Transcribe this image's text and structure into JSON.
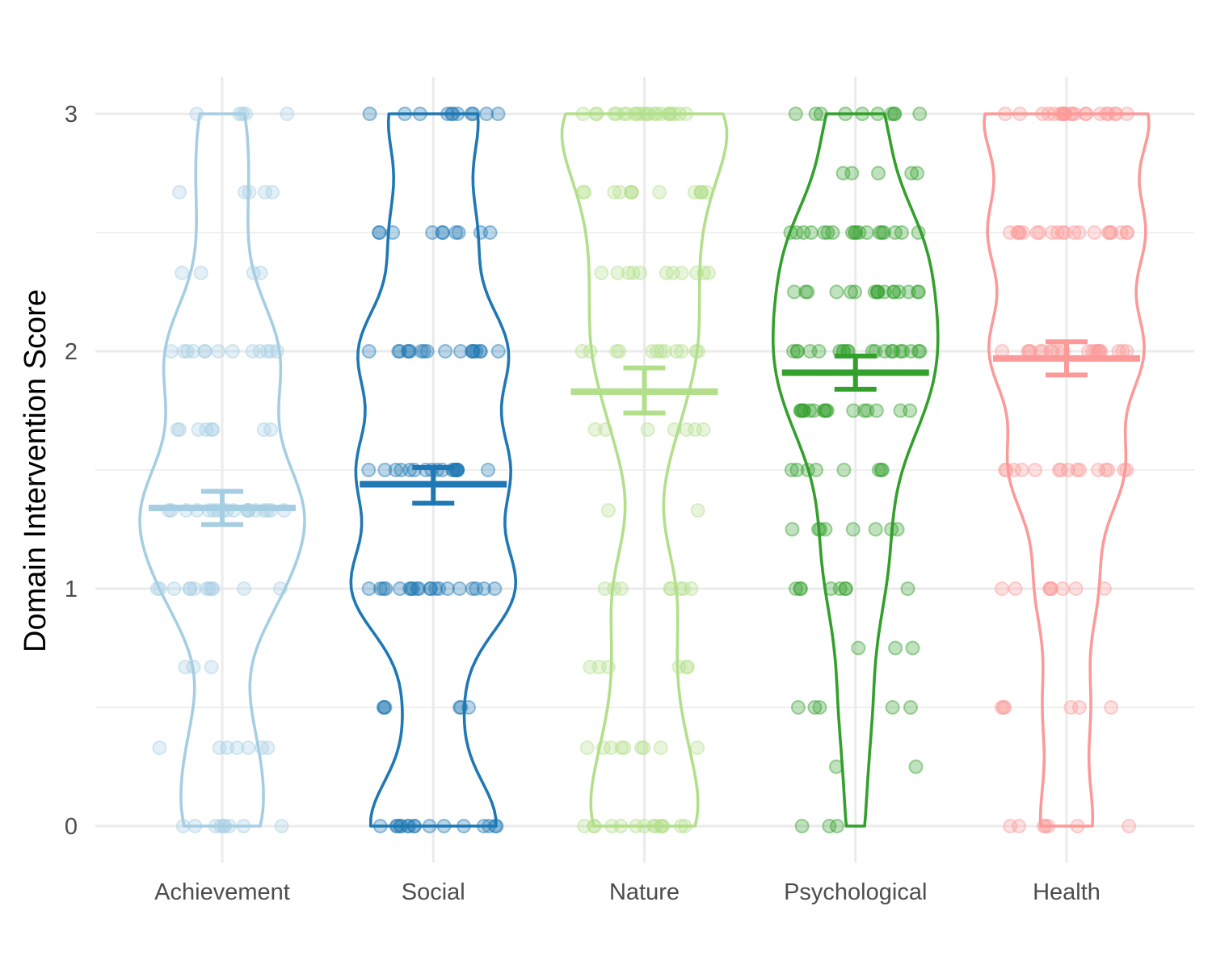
{
  "chart_data": {
    "type": "violin",
    "title": "",
    "xlabel": "",
    "ylabel": "Domain Intervention Score",
    "ylim": [
      0,
      3
    ],
    "yticks": [
      0,
      1,
      2,
      3
    ],
    "grid": true,
    "legend": "none",
    "categories": [
      "Achievement",
      "Social",
      "Nature",
      "Psychological",
      "Health"
    ],
    "series": [
      {
        "category": "Achievement",
        "color": "#a6cee3",
        "mean": 1.34,
        "ci": [
          1.27,
          1.41
        ],
        "point_values": [
          3,
          2.67,
          2.33,
          2,
          1.67,
          1.33,
          1,
          0.67,
          0.33,
          0
        ],
        "point_counts": [
          5,
          5,
          4,
          13,
          8,
          18,
          12,
          3,
          7,
          9
        ]
      },
      {
        "category": "Social",
        "color": "#1f78b4",
        "mean": 1.44,
        "ci": [
          1.36,
          1.51
        ],
        "point_values": [
          3,
          2.5,
          2,
          1.5,
          1,
          0.5,
          0
        ],
        "point_counts": [
          11,
          10,
          18,
          18,
          20,
          6,
          16
        ]
      },
      {
        "category": "Nature",
        "color": "#b2df8a",
        "mean": 1.83,
        "ci": [
          1.74,
          1.93
        ],
        "point_values": [
          3,
          2.67,
          2.33,
          2,
          1.67,
          1.33,
          1,
          0.67,
          0.33,
          0
        ],
        "point_counts": [
          22,
          13,
          11,
          12,
          7,
          2,
          8,
          6,
          9,
          14
        ]
      },
      {
        "category": "Psychological",
        "color": "#33a02c",
        "mean": 1.91,
        "ci": [
          1.84,
          1.98
        ],
        "point_values": [
          3,
          2.75,
          2.5,
          2.25,
          2,
          1.75,
          1.5,
          1.25,
          1,
          0.75,
          0.5,
          0.25,
          0
        ],
        "point_counts": [
          10,
          5,
          18,
          17,
          20,
          17,
          8,
          8,
          8,
          3,
          5,
          2,
          3
        ]
      },
      {
        "category": "Health",
        "color": "#fb9a99",
        "mean": 1.97,
        "ci": [
          1.9,
          2.04
        ],
        "point_values": [
          3,
          2.5,
          2,
          1.5,
          1,
          0.5,
          0
        ],
        "point_counts": [
          22,
          20,
          20,
          15,
          8,
          6,
          7
        ]
      }
    ]
  }
}
